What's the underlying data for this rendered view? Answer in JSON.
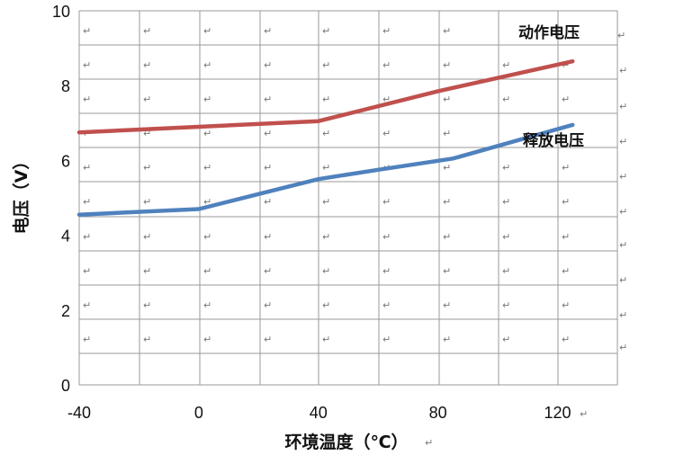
{
  "chart_data": {
    "type": "line",
    "title": "",
    "xlabel": "环境温度（℃）",
    "ylabel": "电压（V）",
    "x_ticks": [
      "-40",
      "0",
      "40",
      "80",
      "120"
    ],
    "y_ticks": [
      "0",
      "2",
      "4",
      "6",
      "8",
      "10"
    ],
    "xlim": [
      -40,
      140
    ],
    "ylim": [
      0,
      10
    ],
    "grid": true,
    "series": [
      {
        "name": "动作电压",
        "color": "#c0504d",
        "x": [
          -40,
          0,
          40,
          80,
          125
        ],
        "y": [
          6.75,
          6.9,
          7.05,
          7.85,
          8.65
        ]
      },
      {
        "name": "释放电压",
        "color": "#4f81bd",
        "x": [
          -40,
          0,
          20,
          40,
          60,
          85,
          125
        ],
        "y": [
          4.55,
          4.7,
          5.1,
          5.5,
          5.75,
          6.05,
          6.95
        ]
      }
    ]
  }
}
